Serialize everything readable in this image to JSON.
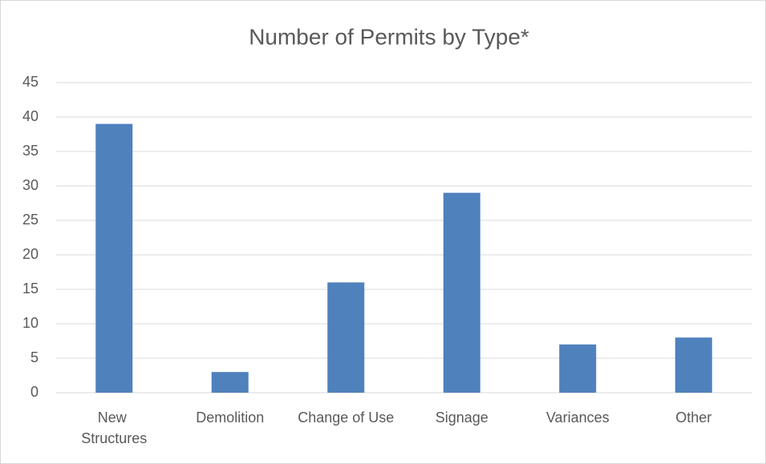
{
  "chart_data": {
    "type": "bar",
    "title": "Number of Permits by Type*",
    "categories": [
      "New Structures",
      "Demolition",
      "Change of Use",
      "Signage",
      "Variances",
      "Other"
    ],
    "values": [
      39,
      3,
      16,
      29,
      7,
      8
    ],
    "color": "#4f81bd",
    "ylim": [
      0,
      45
    ],
    "yticks": [
      0,
      5,
      10,
      15,
      20,
      25,
      30,
      35,
      40,
      45
    ],
    "grid": true
  }
}
